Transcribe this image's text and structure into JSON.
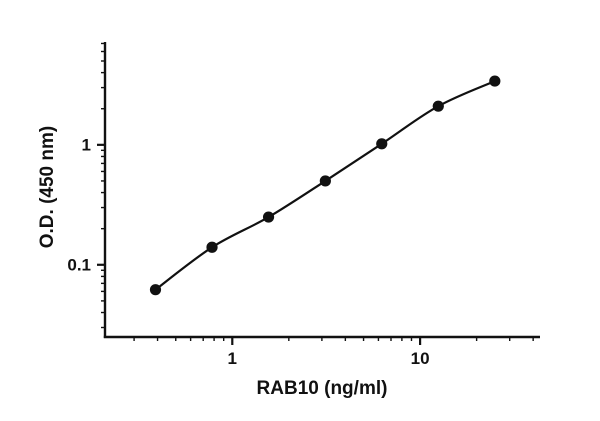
{
  "chart_data": {
    "type": "scatter",
    "title": "",
    "xlabel": "RAB10 (ng/ml)",
    "ylabel": "O.D. (450 nm)",
    "x_scale": "log",
    "y_scale": "log",
    "x": [
      0.39,
      0.78,
      1.56,
      3.13,
      6.25,
      12.5,
      25
    ],
    "y": [
      0.062,
      0.14,
      0.25,
      0.5,
      1.02,
      2.1,
      3.4
    ],
    "xlim": [
      0.21,
      43.5
    ],
    "ylim": [
      0.025,
      7.2
    ],
    "x_ticks": [
      1,
      10
    ],
    "x_tick_labels": [
      "1",
      "10"
    ],
    "y_ticks": [
      0.1,
      1
    ],
    "y_tick_labels": [
      "0.1",
      "1"
    ],
    "grid": false,
    "legend": "none",
    "marker_color": "#111111",
    "line_color": "#111111",
    "axis_color": "#111111",
    "background_color": "#ffffff"
  }
}
